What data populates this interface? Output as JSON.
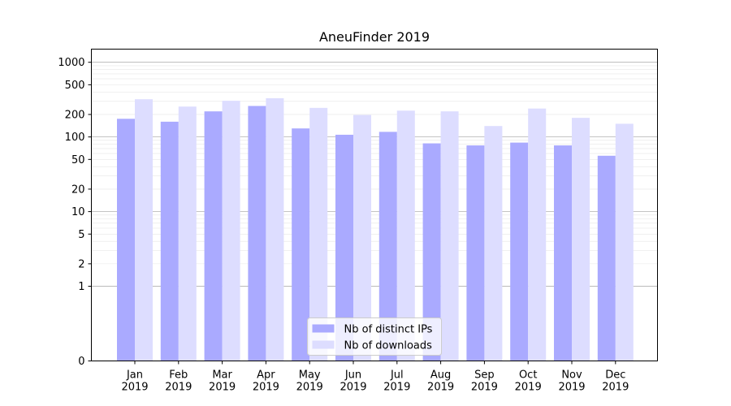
{
  "chart_data": {
    "type": "bar",
    "title": "AneuFinder 2019",
    "xlabel": "",
    "ylabel": "",
    "y_scale": "symlog",
    "ylim": [
      0,
      1500
    ],
    "y_ticks": [
      0,
      1,
      2,
      5,
      10,
      20,
      50,
      100,
      200,
      500,
      1000
    ],
    "grid": true,
    "legend_position": "bottom-center",
    "categories": [
      [
        "Jan",
        "2019"
      ],
      [
        "Feb",
        "2019"
      ],
      [
        "Mar",
        "2019"
      ],
      [
        "Apr",
        "2019"
      ],
      [
        "May",
        "2019"
      ],
      [
        "Jun",
        "2019"
      ],
      [
        "Jul",
        "2019"
      ],
      [
        "Aug",
        "2019"
      ],
      [
        "Sep",
        "2019"
      ],
      [
        "Oct",
        "2019"
      ],
      [
        "Nov",
        "2019"
      ],
      [
        "Dec",
        "2019"
      ]
    ],
    "series": [
      {
        "name": "Nb of distinct IPs",
        "color": "#aaaaff",
        "values": [
          175,
          160,
          220,
          260,
          130,
          107,
          117,
          82,
          77,
          84,
          77,
          56
        ]
      },
      {
        "name": "Nb of downloads",
        "color": "#ddddff",
        "values": [
          320,
          255,
          305,
          330,
          245,
          197,
          225,
          220,
          140,
          240,
          180,
          150
        ]
      }
    ]
  }
}
